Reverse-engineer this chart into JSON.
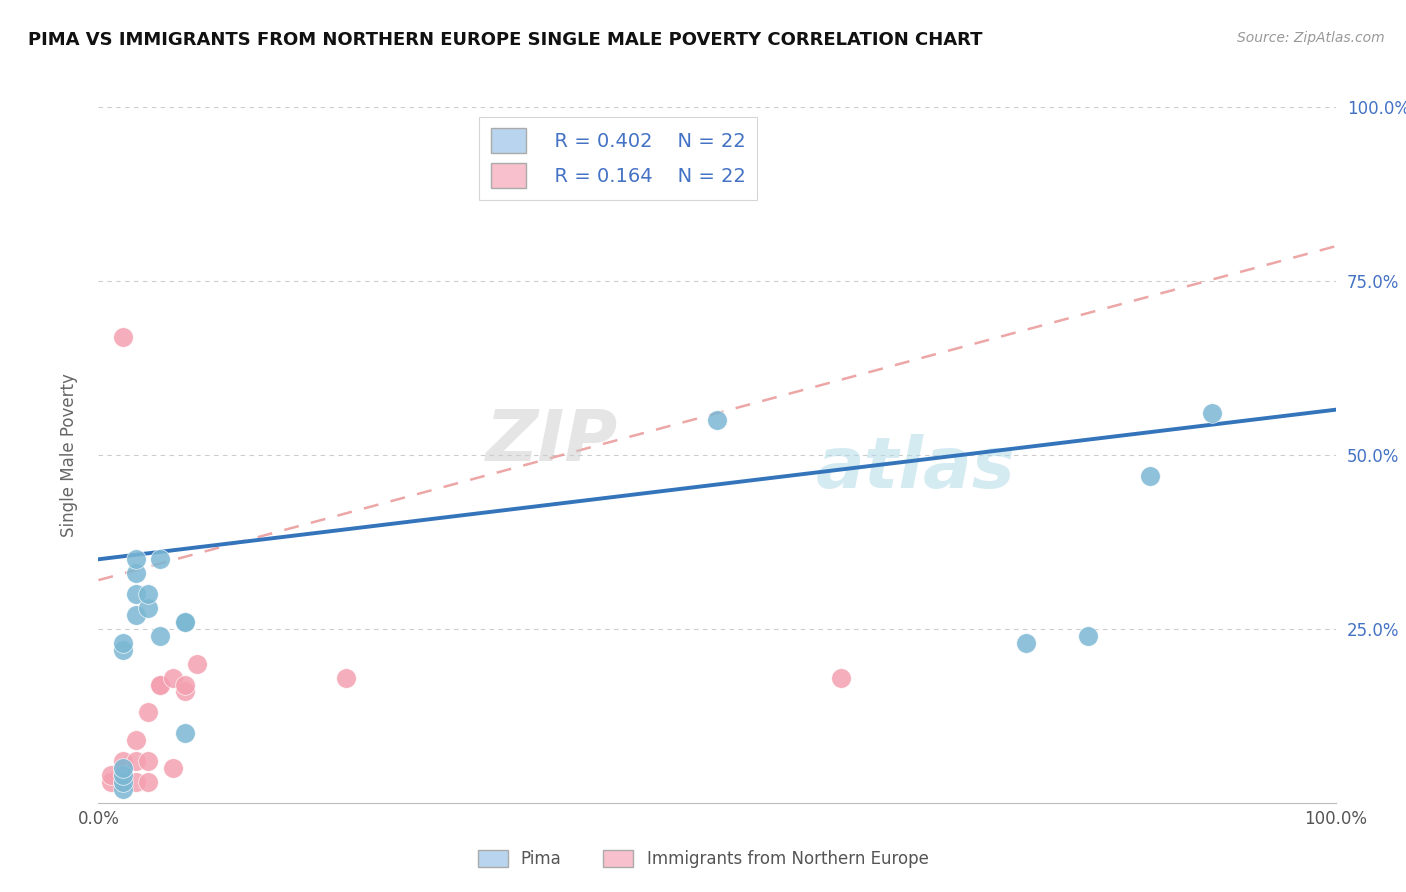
{
  "title": "PIMA VS IMMIGRANTS FROM NORTHERN EUROPE SINGLE MALE POVERTY CORRELATION CHART",
  "source": "Source: ZipAtlas.com",
  "ylabel": "Single Male Poverty",
  "xlim": [
    0,
    1
  ],
  "ylim": [
    0,
    1
  ],
  "pima_color": "#7bb8d4",
  "imm_color": "#f4a0b0",
  "trend_blue": "#3474ba",
  "trend_pink": "#e89090",
  "legend_box_blue": "#b8d4ee",
  "legend_box_pink": "#f8c0cc",
  "R_pima": 0.402,
  "N_pima": 22,
  "R_imm": 0.164,
  "N_imm": 22,
  "watermark": "ZIPatlas",
  "pima_x": [
    0.02,
    0.02,
    0.02,
    0.02,
    0.02,
    0.02,
    0.03,
    0.03,
    0.03,
    0.03,
    0.04,
    0.04,
    0.05,
    0.05,
    0.07,
    0.07,
    0.07,
    0.5,
    0.75,
    0.8,
    0.85,
    0.9
  ],
  "pima_y": [
    0.02,
    0.03,
    0.04,
    0.05,
    0.22,
    0.23,
    0.27,
    0.3,
    0.33,
    0.35,
    0.28,
    0.3,
    0.24,
    0.35,
    0.26,
    0.26,
    0.1,
    0.55,
    0.23,
    0.24,
    0.47,
    0.56
  ],
  "imm_x": [
    0.01,
    0.01,
    0.02,
    0.02,
    0.02,
    0.02,
    0.02,
    0.03,
    0.03,
    0.03,
    0.04,
    0.04,
    0.04,
    0.05,
    0.05,
    0.06,
    0.06,
    0.07,
    0.07,
    0.08,
    0.2,
    0.6
  ],
  "imm_y": [
    0.03,
    0.04,
    0.03,
    0.04,
    0.05,
    0.06,
    0.67,
    0.03,
    0.06,
    0.09,
    0.03,
    0.06,
    0.13,
    0.17,
    0.17,
    0.05,
    0.18,
    0.16,
    0.17,
    0.2,
    0.18,
    0.18
  ],
  "blue_line_x0": 0.0,
  "blue_line_y0": 0.35,
  "blue_line_x1": 1.0,
  "blue_line_y1": 0.565,
  "pink_line_x0": 0.0,
  "pink_line_y0": 0.32,
  "pink_line_x1": 1.0,
  "pink_line_y1": 0.8
}
